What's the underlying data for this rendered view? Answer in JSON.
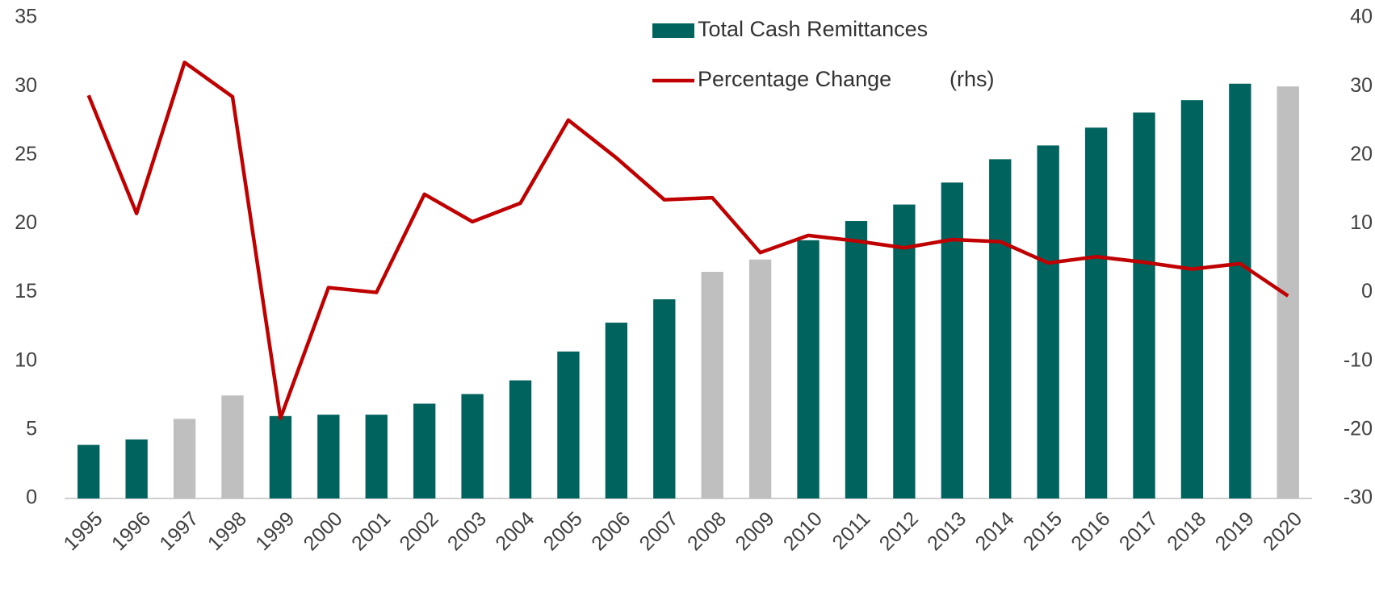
{
  "chart_data": {
    "type": "bar_line",
    "categories": [
      "1995",
      "1996",
      "1997",
      "1998",
      "1999",
      "2000",
      "2001",
      "2002",
      "2003",
      "2004",
      "2005",
      "2006",
      "2007",
      "2008",
      "2009",
      "2010",
      "2011",
      "2012",
      "2013",
      "2014",
      "2015",
      "2016",
      "2017",
      "2018",
      "2019",
      "2020"
    ],
    "series": [
      {
        "name": "Total Cash Remittances",
        "type": "bar",
        "color": "#00635d",
        "colors": [
          "#00635d",
          "#00635d",
          "#bfbfbf",
          "#bfbfbf",
          "#00635d",
          "#00635d",
          "#00635d",
          "#00635d",
          "#00635d",
          "#00635d",
          "#00635d",
          "#00635d",
          "#00635d",
          "#bfbfbf",
          "#bfbfbf",
          "#00635d",
          "#00635d",
          "#00635d",
          "#00635d",
          "#00635d",
          "#00635d",
          "#00635d",
          "#00635d",
          "#00635d",
          "#00635d",
          "#bfbfbf"
        ],
        "values": [
          3.9,
          4.3,
          5.8,
          7.5,
          6.0,
          6.1,
          6.1,
          6.9,
          7.6,
          8.6,
          10.7,
          12.8,
          14.5,
          16.5,
          17.4,
          18.8,
          20.2,
          21.4,
          23.0,
          24.7,
          25.7,
          27.0,
          28.1,
          29.0,
          30.2,
          30.0
        ]
      },
      {
        "name": "Percentage Change",
        "type": "line",
        "axis": "y2",
        "color": "#c00000",
        "values": [
          28.7,
          11.5,
          33.5,
          28.5,
          -18.3,
          0.7,
          0.0,
          14.3,
          10.3,
          13.0,
          25.1,
          19.6,
          13.5,
          13.8,
          5.8,
          8.3,
          7.5,
          6.5,
          7.7,
          7.4,
          4.3,
          5.2,
          4.4,
          3.4,
          4.2,
          -0.5
        ]
      }
    ],
    "annotations": [
      "(rhs)"
    ],
    "ylim": [
      0,
      35
    ],
    "yticks": [
      0,
      5,
      10,
      15,
      20,
      25,
      30,
      35
    ],
    "y2lim": [
      -30,
      40
    ],
    "y2ticks": [
      -30,
      -20,
      -10,
      0,
      10,
      20,
      30,
      40
    ],
    "grid": false,
    "legend": "top"
  }
}
